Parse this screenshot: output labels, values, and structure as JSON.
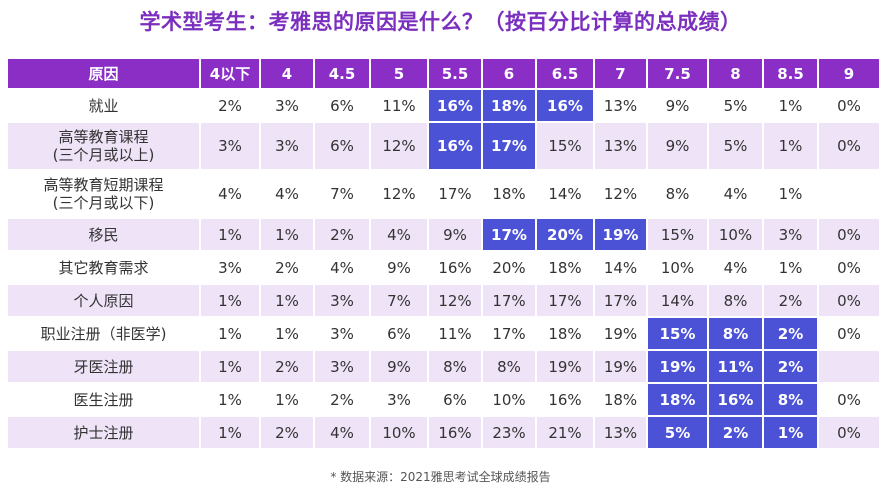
{
  "title": "学术型考生：考雅思的原因是什么？（按百分比计算的总成绩）",
  "header": [
    "原因",
    "4以下",
    "4",
    "4.5",
    "5",
    "5.5",
    "6",
    "6.5",
    "7",
    "7.5",
    "8",
    "8.5",
    "9"
  ],
  "rows": [
    {
      "reason": "就业",
      "values": [
        "2%",
        "3%",
        "6%",
        "11%",
        "16%",
        "18%",
        "16%",
        "13%",
        "9%",
        "5%",
        "1%",
        "0%"
      ],
      "highlight": [
        4,
        5,
        6
      ]
    },
    {
      "reason": "高等教育课程\n(三个月或以上)",
      "values": [
        "3%",
        "3%",
        "6%",
        "12%",
        "16%",
        "17%",
        "15%",
        "13%",
        "9%",
        "5%",
        "1%",
        "0%"
      ],
      "highlight": [
        4,
        5
      ]
    },
    {
      "reason": "高等教育短期课程\n(三个月或以下)",
      "values": [
        "4%",
        "4%",
        "7%",
        "12%",
        "17%",
        "18%",
        "14%",
        "12%",
        "8%",
        "4%",
        "1%",
        ""
      ],
      "highlight": []
    },
    {
      "reason": "移民",
      "values": [
        "1%",
        "1%",
        "2%",
        "4%",
        "9%",
        "17%",
        "20%",
        "19%",
        "15%",
        "10%",
        "3%",
        "0%"
      ],
      "highlight": [
        5,
        6,
        7
      ]
    },
    {
      "reason": "其它教育需求",
      "values": [
        "3%",
        "2%",
        "4%",
        "9%",
        "16%",
        "20%",
        "18%",
        "14%",
        "10%",
        "4%",
        "1%",
        "0%"
      ],
      "highlight": []
    },
    {
      "reason": "个人原因",
      "values": [
        "1%",
        "1%",
        "3%",
        "7%",
        "12%",
        "17%",
        "17%",
        "17%",
        "14%",
        "8%",
        "2%",
        "0%"
      ],
      "highlight": []
    },
    {
      "reason": "职业注册（非医学)",
      "values": [
        "1%",
        "1%",
        "3%",
        "6%",
        "11%",
        "17%",
        "18%",
        "19%",
        "15%",
        "8%",
        "2%",
        "0%"
      ],
      "highlight": [
        8,
        9,
        10
      ]
    },
    {
      "reason": "牙医注册",
      "values": [
        "1%",
        "2%",
        "3%",
        "9%",
        "8%",
        "8%",
        "19%",
        "19%",
        "19%",
        "11%",
        "2%",
        ""
      ],
      "highlight": [
        8,
        9,
        10
      ]
    },
    {
      "reason": "医生注册",
      "values": [
        "1%",
        "1%",
        "2%",
        "3%",
        "6%",
        "10%",
        "16%",
        "18%",
        "18%",
        "16%",
        "8%",
        "0%"
      ],
      "highlight": [
        8,
        9,
        10
      ]
    },
    {
      "reason": "护士注册",
      "values": [
        "1%",
        "2%",
        "4%",
        "10%",
        "16%",
        "23%",
        "21%",
        "13%",
        "5%",
        "2%",
        "1%",
        "0%"
      ],
      "highlight": [
        8,
        9,
        10
      ]
    }
  ],
  "footnote": "* 数据来源：2021雅思考试全球成绩报告",
  "colors": {
    "title": "#7b2fbe",
    "header_bg": "#8a2ec5",
    "stripe": "#efe4f7",
    "highlight": "#4b52d6"
  }
}
